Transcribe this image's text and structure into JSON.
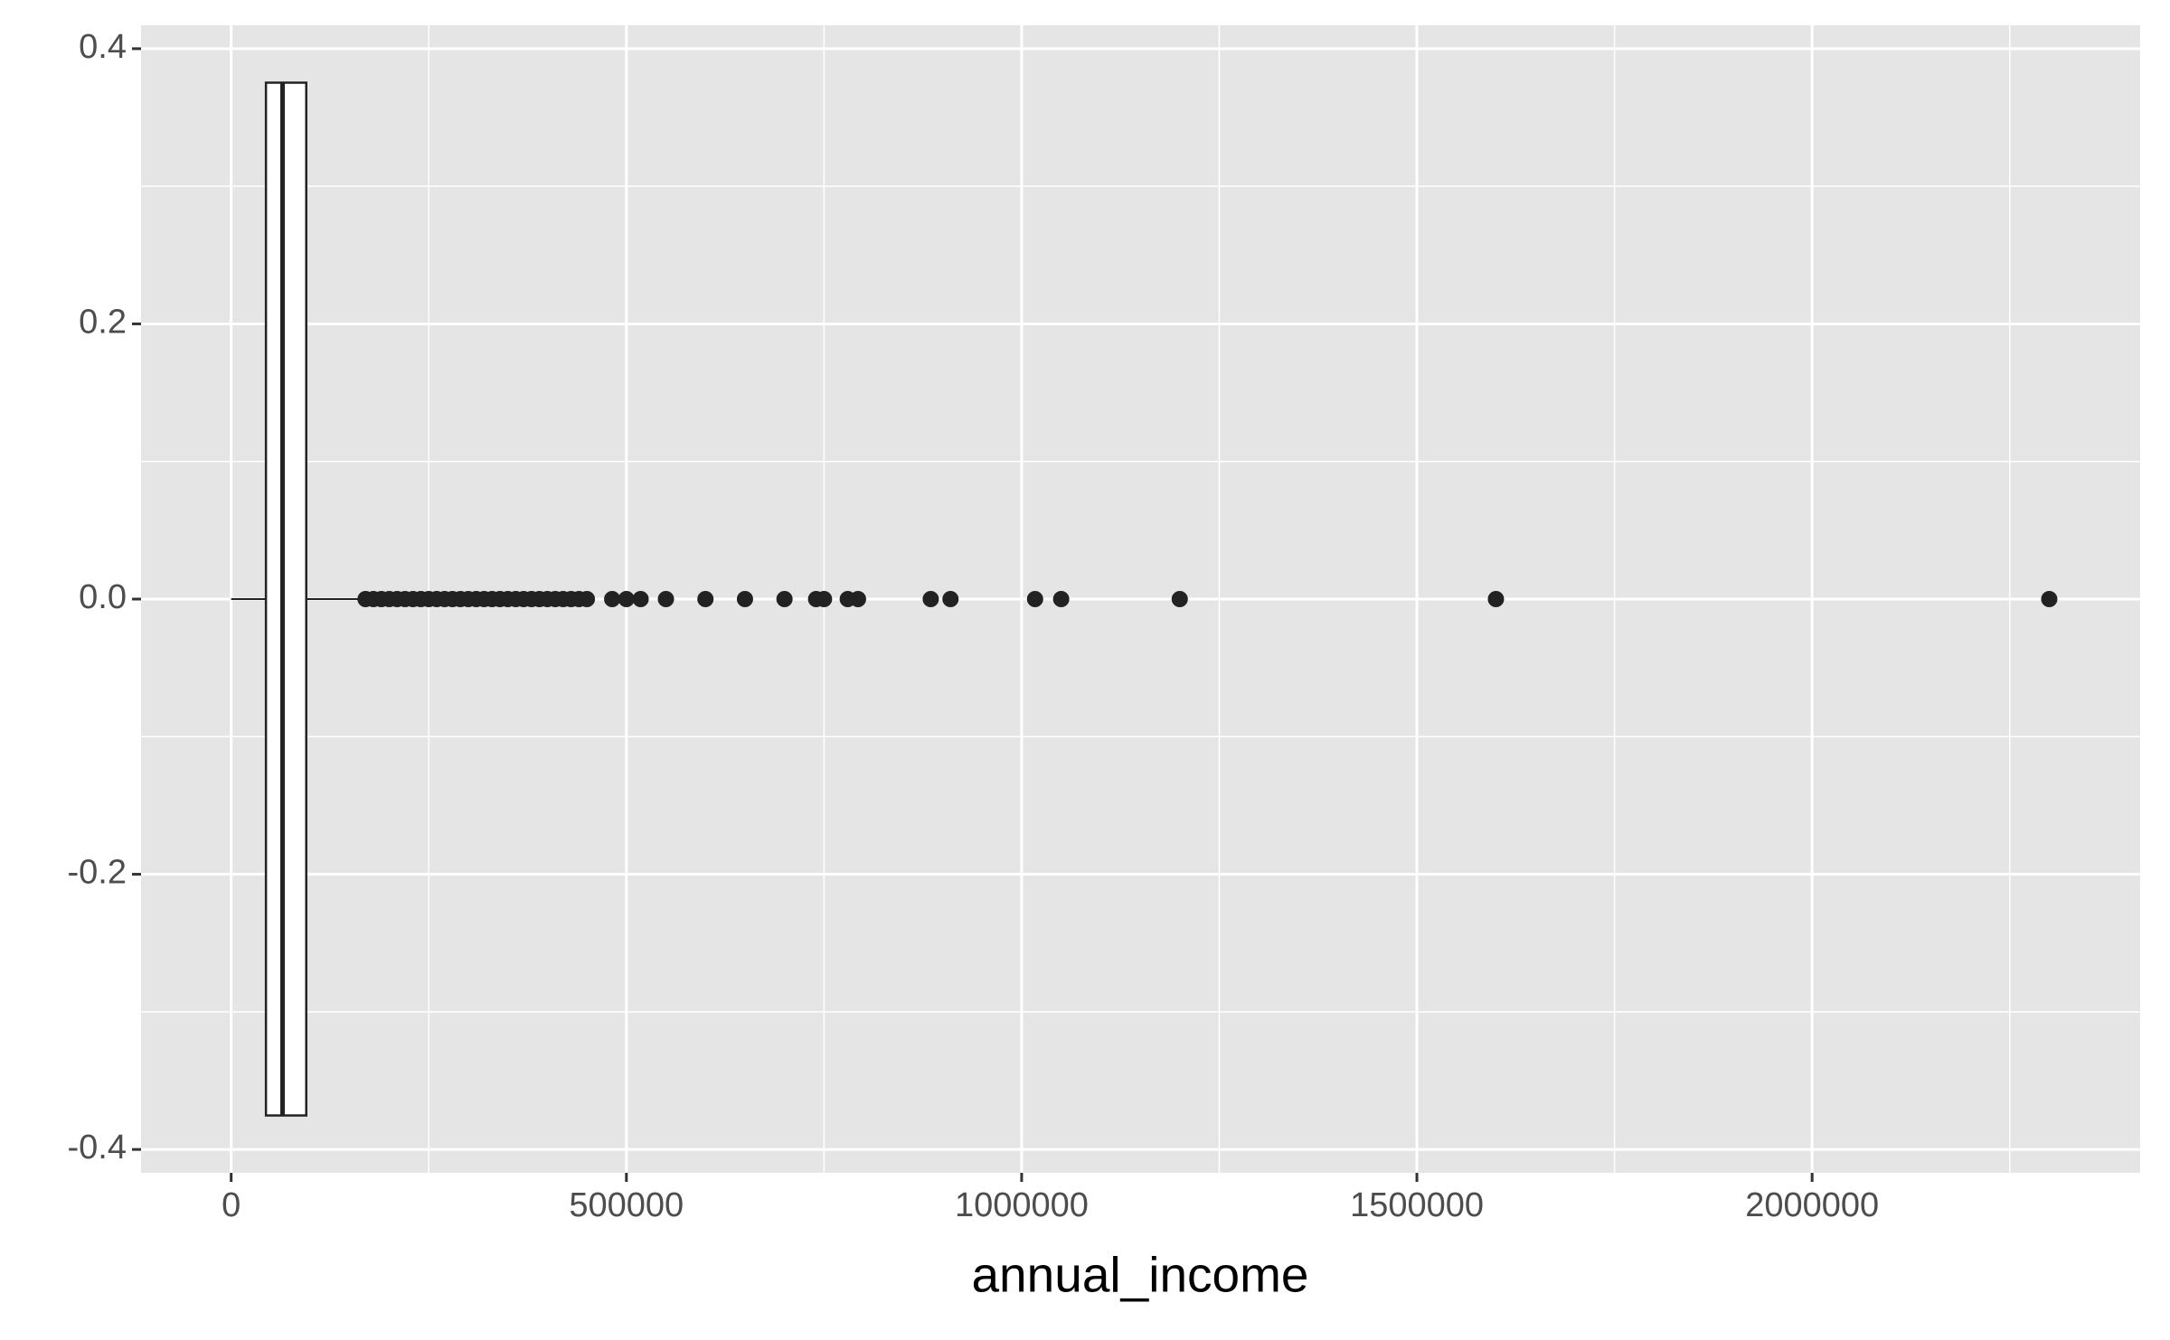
{
  "chart_data": {
    "type": "boxplot",
    "x_label": "annual_income",
    "orientation": "horizontal",
    "boxes": [
      {
        "whisker_low": 0,
        "q1": 44000,
        "median": 65000,
        "q3": 95000,
        "whisker_high": 168000,
        "outliers": [
          170000,
          180000,
          190000,
          200000,
          210000,
          220000,
          230000,
          240000,
          250000,
          260000,
          270000,
          280000,
          290000,
          300000,
          310000,
          320000,
          330000,
          340000,
          350000,
          360000,
          370000,
          380000,
          390000,
          400000,
          410000,
          420000,
          430000,
          440000,
          450000,
          482000,
          500000,
          518000,
          550000,
          600000,
          650000,
          700000,
          740000,
          750000,
          780000,
          793000,
          885000,
          910000,
          1017000,
          1050000,
          1200000,
          1600000,
          2300000
        ]
      }
    ],
    "xlim": [
      -114000,
      2415000
    ],
    "xticks": [
      0,
      500000,
      1000000,
      1500000,
      2000000
    ],
    "ylim": [
      -0.417,
      0.417
    ],
    "yticks": [
      -0.4,
      -0.2,
      {
        "value": 0,
        "label": "0.0"
      },
      0.2,
      0.4
    ],
    "grid": true,
    "colors": {
      "panel": "#e5e5e5",
      "box_fill": "#ffffff",
      "box_line": "#222222",
      "point": "#222222"
    }
  }
}
